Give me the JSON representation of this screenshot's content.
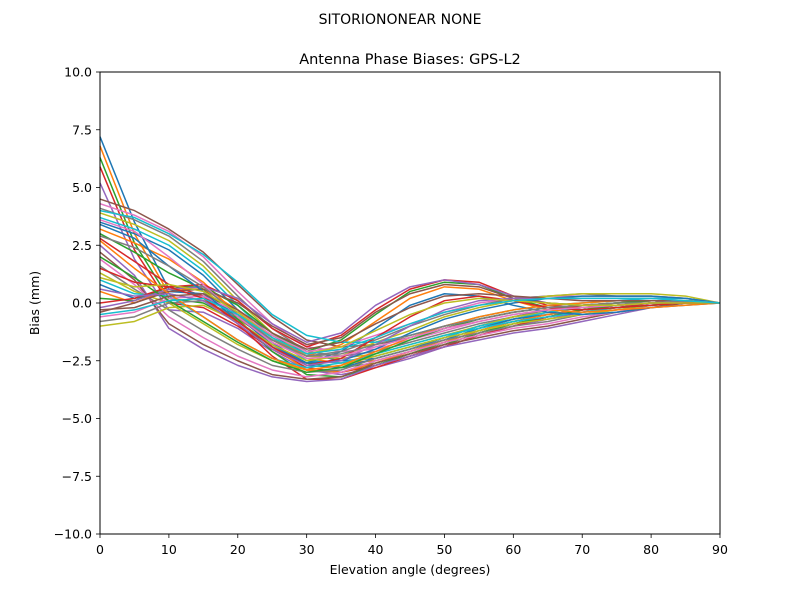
{
  "chart_data": {
    "type": "line",
    "suptitle": "SITORIONONEAR   NONE",
    "title": "Antenna Phase Biases: GPS-L2",
    "xlabel": "Elevation angle (degrees)",
    "ylabel": "Bias (mm)",
    "xlim": [
      0,
      90
    ],
    "ylim": [
      -10,
      10
    ],
    "xticks": [
      0,
      10,
      20,
      30,
      40,
      50,
      60,
      70,
      80,
      90
    ],
    "yticks": [
      -10.0,
      -7.5,
      -5.0,
      -2.5,
      0.0,
      2.5,
      5.0,
      7.5,
      10.0
    ],
    "xtick_labels": [
      "0",
      "10",
      "20",
      "30",
      "40",
      "50",
      "60",
      "70",
      "80",
      "90"
    ],
    "ytick_labels": [
      "−10.0",
      "−7.5",
      "−5.0",
      "−2.5",
      "0.0",
      "2.5",
      "5.0",
      "7.5",
      "10.0"
    ],
    "grid": false,
    "legend": "none",
    "x": [
      0,
      5,
      10,
      15,
      20,
      25,
      30,
      35,
      40,
      45,
      50,
      55,
      60,
      65,
      70,
      75,
      80,
      85,
      90
    ],
    "colors": [
      "#1f77b4",
      "#ff7f0e",
      "#2ca02c",
      "#d62728",
      "#9467bd",
      "#8c564b",
      "#e377c2",
      "#7f7f7f",
      "#bcbd22",
      "#17becf"
    ],
    "series": [
      {
        "values": [
          7.2,
          3.5,
          0.6,
          0.3,
          -0.5,
          -1.4,
          -2.2,
          -2.5,
          -2.4,
          -2.0,
          -1.5,
          -1.0,
          -0.6,
          -0.3,
          -0.1,
          0.0,
          0.1,
          0.1,
          0.0
        ]
      },
      {
        "values": [
          6.8,
          3.0,
          0.4,
          0.1,
          -0.7,
          -1.6,
          -2.4,
          -2.6,
          -2.5,
          -2.1,
          -1.6,
          -1.1,
          -0.7,
          -0.4,
          -0.2,
          -0.1,
          0.0,
          0.1,
          0.0
        ]
      },
      {
        "values": [
          6.3,
          2.6,
          0.2,
          0.0,
          -0.8,
          -1.8,
          -2.6,
          -2.8,
          -2.6,
          -2.2,
          -1.7,
          -1.2,
          -0.8,
          -0.5,
          -0.3,
          -0.1,
          0.0,
          0.1,
          0.0
        ]
      },
      {
        "values": [
          5.9,
          2.3,
          0.0,
          -0.2,
          -1.0,
          -2.0,
          -2.8,
          -3.0,
          -2.7,
          -2.3,
          -1.8,
          -1.3,
          -0.9,
          -0.6,
          -0.3,
          -0.1,
          0.0,
          0.1,
          0.0
        ]
      },
      {
        "values": [
          5.2,
          1.9,
          -0.3,
          -0.4,
          -1.1,
          -2.1,
          -2.9,
          -3.1,
          -2.8,
          -2.4,
          -1.9,
          -1.4,
          -1.0,
          -0.7,
          -0.4,
          -0.2,
          0.0,
          0.1,
          0.0
        ]
      },
      {
        "values": [
          4.5,
          4.0,
          3.2,
          2.2,
          0.8,
          -0.6,
          -1.6,
          -1.9,
          -1.8,
          -1.5,
          -1.1,
          -0.7,
          -0.4,
          -0.2,
          -0.1,
          0.0,
          0.1,
          0.1,
          0.0
        ]
      },
      {
        "values": [
          4.3,
          3.8,
          3.1,
          2.0,
          0.5,
          -0.9,
          -1.9,
          -2.1,
          -2.0,
          -1.6,
          -1.2,
          -0.8,
          -0.5,
          -0.3,
          -0.1,
          0.0,
          0.1,
          0.1,
          0.0
        ]
      },
      {
        "values": [
          4.1,
          3.6,
          2.9,
          1.8,
          0.3,
          -1.1,
          -2.1,
          -2.3,
          -2.1,
          -1.7,
          -1.3,
          -0.9,
          -0.6,
          -0.3,
          -0.1,
          0.0,
          0.1,
          0.1,
          0.0
        ]
      },
      {
        "values": [
          3.9,
          3.4,
          2.7,
          1.6,
          0.1,
          -1.3,
          -2.3,
          -2.4,
          -2.2,
          -1.8,
          -1.4,
          -1.0,
          -0.6,
          -0.4,
          -0.2,
          0.0,
          0.1,
          0.1,
          0.0
        ]
      },
      {
        "values": [
          3.7,
          3.2,
          2.5,
          1.4,
          -0.1,
          -1.5,
          -2.5,
          -2.6,
          -2.3,
          -1.9,
          -1.5,
          -1.0,
          -0.7,
          -0.4,
          -0.2,
          -0.1,
          0.0,
          0.1,
          0.0
        ]
      },
      {
        "values": [
          3.5,
          3.0,
          2.3,
          1.2,
          -0.3,
          -1.7,
          -2.7,
          -2.8,
          -2.4,
          -2.0,
          -1.6,
          -1.1,
          -0.7,
          -0.5,
          -0.3,
          -0.1,
          0.0,
          0.1,
          0.0
        ]
      },
      {
        "values": [
          3.2,
          2.6,
          1.9,
          0.9,
          -0.5,
          -1.9,
          -2.9,
          -3.0,
          -2.6,
          -2.1,
          -1.7,
          -1.2,
          -0.8,
          -0.5,
          -0.3,
          -0.1,
          0.0,
          0.1,
          0.0
        ]
      },
      {
        "values": [
          3.0,
          2.2,
          1.3,
          0.6,
          -0.7,
          -2.1,
          -3.1,
          -3.2,
          -2.7,
          -2.2,
          -1.8,
          -1.3,
          -0.9,
          -0.6,
          -0.3,
          -0.1,
          0.0,
          0.1,
          0.0
        ]
      },
      {
        "values": [
          2.8,
          1.8,
          0.8,
          0.3,
          -0.9,
          -2.3,
          -3.3,
          -3.3,
          -2.8,
          -2.3,
          -1.9,
          -1.4,
          -1.0,
          -0.6,
          -0.4,
          -0.2,
          0.0,
          0.1,
          0.0
        ]
      },
      {
        "values": [
          2.5,
          1.2,
          -1.1,
          -2.0,
          -2.7,
          -3.2,
          -3.4,
          -3.3,
          -2.7,
          -2.3,
          -1.9,
          -1.6,
          -1.3,
          -1.1,
          -0.8,
          -0.5,
          -0.2,
          0.0,
          0.0
        ]
      },
      {
        "values": [
          2.2,
          1.0,
          -0.9,
          -1.8,
          -2.5,
          -3.1,
          -3.3,
          -3.2,
          -2.6,
          -2.2,
          -1.8,
          -1.5,
          -1.2,
          -1.0,
          -0.7,
          -0.4,
          -0.2,
          0.0,
          0.0
        ]
      },
      {
        "values": [
          1.9,
          0.8,
          -0.6,
          -1.5,
          -2.3,
          -2.9,
          -3.2,
          -3.0,
          -2.5,
          -2.1,
          -1.7,
          -1.4,
          -1.1,
          -0.9,
          -0.6,
          -0.4,
          -0.1,
          0.0,
          0.0
        ]
      },
      {
        "values": [
          1.6,
          0.6,
          -0.3,
          -1.2,
          -2.0,
          -2.7,
          -3.0,
          -2.9,
          -2.4,
          -2.0,
          -1.6,
          -1.3,
          -1.0,
          -0.8,
          -0.5,
          -0.3,
          -0.1,
          0.0,
          0.0
        ]
      },
      {
        "values": [
          1.3,
          0.5,
          0.0,
          -0.9,
          -1.8,
          -2.5,
          -2.9,
          -2.7,
          -2.3,
          -1.9,
          -1.5,
          -1.2,
          -0.9,
          -0.7,
          -0.5,
          -0.3,
          -0.1,
          0.0,
          0.0
        ]
      },
      {
        "values": [
          1.0,
          0.4,
          0.3,
          -0.6,
          -1.6,
          -2.4,
          -2.8,
          -2.6,
          -2.2,
          -1.8,
          -1.4,
          -1.1,
          -0.8,
          -0.6,
          -0.4,
          -0.2,
          -0.1,
          0.0,
          0.0
        ]
      },
      {
        "values": [
          0.8,
          0.2,
          0.5,
          0.4,
          -0.6,
          -1.8,
          -2.6,
          -2.1,
          -1.1,
          -0.1,
          0.4,
          0.3,
          -0.1,
          -0.4,
          -0.5,
          -0.4,
          -0.2,
          -0.1,
          0.0
        ]
      },
      {
        "values": [
          0.5,
          0.0,
          0.6,
          0.6,
          -0.3,
          -1.5,
          -2.3,
          -1.8,
          -0.8,
          0.2,
          0.7,
          0.6,
          0.1,
          -0.3,
          -0.4,
          -0.3,
          -0.2,
          -0.1,
          0.0
        ]
      },
      {
        "values": [
          0.2,
          0.1,
          0.7,
          0.7,
          -0.1,
          -1.3,
          -2.1,
          -1.6,
          -0.5,
          0.5,
          0.9,
          0.8,
          0.2,
          -0.2,
          -0.3,
          -0.2,
          -0.1,
          0.0,
          0.0
        ]
      },
      {
        "values": [
          0.0,
          0.2,
          0.7,
          0.8,
          0.1,
          -1.1,
          -1.9,
          -1.4,
          -0.3,
          0.6,
          1.0,
          0.9,
          0.3,
          -0.1,
          -0.2,
          -0.1,
          0.0,
          0.0,
          0.0
        ]
      },
      {
        "values": [
          -0.2,
          0.1,
          0.6,
          0.7,
          0.2,
          -0.9,
          -1.7,
          -1.3,
          -0.1,
          0.7,
          1.0,
          0.8,
          0.3,
          0.0,
          -0.1,
          -0.1,
          0.0,
          0.0,
          0.0
        ]
      },
      {
        "values": [
          -0.4,
          0.0,
          0.5,
          0.6,
          0.0,
          -1.0,
          -1.8,
          -1.5,
          -0.4,
          0.4,
          0.8,
          0.7,
          0.2,
          0.0,
          -0.1,
          -0.1,
          0.0,
          0.0,
          0.0
        ]
      },
      {
        "values": [
          -0.6,
          -0.4,
          0.2,
          0.3,
          -0.4,
          -1.4,
          -2.1,
          -1.9,
          -1.4,
          -0.9,
          -0.4,
          0.0,
          0.2,
          0.3,
          0.3,
          0.3,
          0.3,
          0.2,
          0.0
        ]
      },
      {
        "values": [
          -0.8,
          -0.6,
          0.0,
          0.1,
          -0.6,
          -1.6,
          -2.3,
          -2.1,
          -1.6,
          -1.0,
          -0.5,
          -0.1,
          0.2,
          0.3,
          0.4,
          0.3,
          0.3,
          0.2,
          0.0
        ]
      },
      {
        "values": [
          -1.0,
          -0.8,
          -0.2,
          -0.1,
          -0.8,
          -1.8,
          -2.5,
          -2.3,
          -1.7,
          -1.2,
          -0.6,
          -0.2,
          0.1,
          0.3,
          0.4,
          0.4,
          0.4,
          0.3,
          0.0
        ]
      },
      {
        "values": [
          4.0,
          3.7,
          3.0,
          2.1,
          0.9,
          -0.5,
          -1.4,
          -1.7,
          -1.7,
          -1.4,
          -1.0,
          -0.6,
          -0.3,
          -0.1,
          0.0,
          0.1,
          0.2,
          0.2,
          0.0
        ]
      },
      {
        "values": [
          3.4,
          2.8,
          1.6,
          0.5,
          -0.8,
          -1.9,
          -2.6,
          -2.5,
          -2.0,
          -1.3,
          -0.7,
          -0.3,
          0.0,
          0.2,
          0.3,
          0.3,
          0.3,
          0.2,
          0.0
        ]
      },
      {
        "values": [
          2.7,
          1.5,
          0.4,
          -0.6,
          -1.6,
          -2.4,
          -2.9,
          -2.7,
          -2.1,
          -1.5,
          -1.0,
          -0.6,
          -0.3,
          -0.1,
          0.0,
          0.1,
          0.1,
          0.1,
          0.0
        ]
      },
      {
        "values": [
          2.0,
          1.1,
          0.1,
          -0.8,
          -1.7,
          -2.5,
          -3.0,
          -2.8,
          -2.2,
          -1.6,
          -1.1,
          -0.7,
          -0.4,
          -0.2,
          -0.1,
          0.0,
          0.1,
          0.1,
          0.0
        ]
      },
      {
        "values": [
          1.5,
          0.9,
          0.7,
          0.2,
          -0.8,
          -1.9,
          -2.7,
          -2.4,
          -1.5,
          -0.6,
          0.1,
          0.3,
          0.1,
          -0.2,
          -0.3,
          -0.2,
          -0.1,
          0.0,
          0.0
        ]
      },
      {
        "values": [
          0.6,
          0.3,
          0.4,
          0.1,
          -0.9,
          -2.0,
          -2.7,
          -2.5,
          -1.8,
          -1.0,
          -0.3,
          0.1,
          0.2,
          0.2,
          0.2,
          0.2,
          0.2,
          0.1,
          0.0
        ]
      },
      {
        "values": [
          -0.3,
          -0.2,
          0.3,
          0.4,
          -0.3,
          -1.3,
          -2.0,
          -1.7,
          -0.9,
          -0.2,
          0.3,
          0.4,
          0.3,
          0.2,
          0.1,
          0.1,
          0.1,
          0.1,
          0.0
        ]
      },
      {
        "values": [
          3.6,
          3.1,
          2.0,
          0.8,
          -0.6,
          -1.7,
          -2.4,
          -2.3,
          -1.9,
          -1.5,
          -1.1,
          -0.8,
          -0.5,
          -0.3,
          -0.2,
          -0.1,
          0.0,
          0.1,
          0.0
        ]
      },
      {
        "values": [
          2.9,
          2.4,
          1.6,
          0.7,
          -0.5,
          -1.6,
          -2.3,
          -2.2,
          -1.8,
          -1.4,
          -1.0,
          -0.7,
          -0.4,
          -0.2,
          -0.1,
          0.0,
          0.0,
          0.1,
          0.0
        ]
      },
      {
        "values": [
          1.1,
          0.7,
          0.8,
          0.5,
          -0.4,
          -1.5,
          -2.2,
          -1.9,
          -1.2,
          -0.5,
          0.0,
          0.2,
          0.1,
          0.0,
          -0.1,
          -0.1,
          0.0,
          0.0,
          0.0
        ]
      },
      {
        "values": [
          -0.5,
          -0.3,
          0.1,
          0.2,
          -0.5,
          -1.5,
          -2.2,
          -2.0,
          -1.5,
          -0.9,
          -0.4,
          -0.1,
          0.1,
          0.2,
          0.2,
          0.2,
          0.2,
          0.1,
          0.0
        ]
      }
    ]
  }
}
